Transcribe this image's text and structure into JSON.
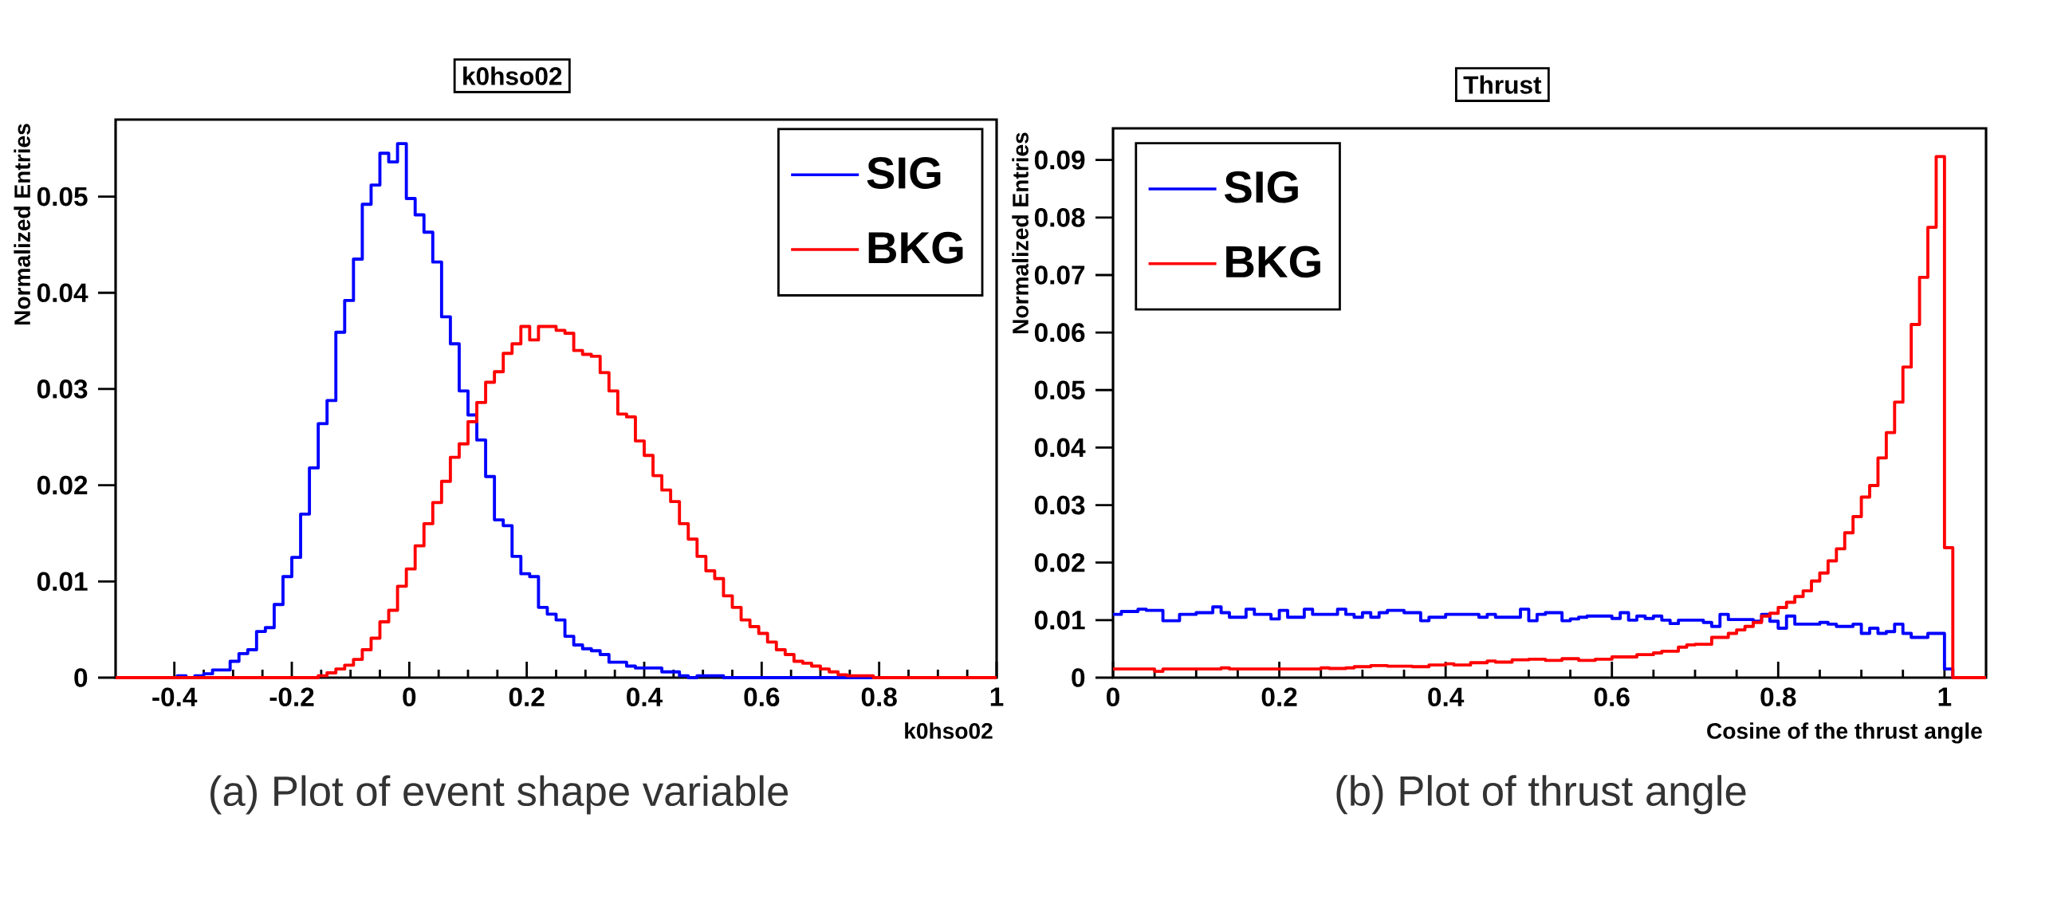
{
  "chart_data": [
    {
      "type": "histogram",
      "title": "k0hso02",
      "xlabel": "k0hso02",
      "ylabel": "Normalized Entries",
      "annotations": [
        "(a) Plot of event shape variable"
      ],
      "bins": [
        -0.5,
        -0.485,
        -0.47,
        -0.455,
        -0.44,
        -0.425,
        -0.41,
        -0.395,
        -0.38,
        -0.365,
        -0.35,
        -0.335,
        -0.32,
        -0.305,
        -0.29,
        -0.275,
        -0.26,
        -0.245,
        -0.23,
        -0.215,
        -0.2,
        -0.185,
        -0.17,
        -0.155,
        -0.14,
        -0.125,
        -0.11,
        -0.095,
        -0.08,
        -0.065,
        -0.05,
        -0.035,
        -0.02,
        -0.005,
        0.01,
        0.025,
        0.04,
        0.055,
        0.07,
        0.085,
        0.1,
        0.115,
        0.13,
        0.145,
        0.16,
        0.175,
        0.19,
        0.205,
        0.22,
        0.235,
        0.25,
        0.265,
        0.28,
        0.295,
        0.31,
        0.325,
        0.34,
        0.355,
        0.37,
        0.385,
        0.4,
        0.415,
        0.43,
        0.445,
        0.46,
        0.475,
        0.49,
        0.505,
        0.52,
        0.535,
        0.55,
        0.565,
        0.58,
        0.595,
        0.61,
        0.625,
        0.64,
        0.655,
        0.67,
        0.685,
        0.7,
        0.715,
        0.73,
        0.745,
        0.76,
        0.775,
        0.79,
        0.805,
        0.82,
        0.835,
        0.85,
        0.865,
        0.88,
        0.895,
        0.91,
        0.925,
        0.94,
        0.955,
        0.97,
        0.985,
        1
      ],
      "series": [
        {
          "name": "SIG",
          "color": "#0000ff",
          "values": [
            0,
            0,
            0,
            0,
            0,
            0,
            0,
            0.0002,
            0,
            0.0002,
            0.0004,
            0.0008,
            0.0008,
            0.0017,
            0.0025,
            0.0029,
            0.0048,
            0.0052,
            0.0076,
            0.0105,
            0.0125,
            0.017,
            0.0218,
            0.0264,
            0.0288,
            0.0359,
            0.0392,
            0.0435,
            0.0492,
            0.0512,
            0.0545,
            0.0536,
            0.0555,
            0.0498,
            0.0481,
            0.0463,
            0.0432,
            0.0375,
            0.0347,
            0.0298,
            0.0273,
            0.0247,
            0.0209,
            0.0164,
            0.0158,
            0.0126,
            0.0108,
            0.0105,
            0.0073,
            0.0066,
            0.006,
            0.0043,
            0.0034,
            0.003,
            0.0028,
            0.0024,
            0.0016,
            0.0016,
            0.0012,
            0.001,
            0.001,
            0.001,
            0.0006,
            0.0006,
            0.0002,
            0,
            0.0002,
            0.0002,
            0.0002,
            0,
            0,
            0,
            0,
            0,
            0,
            0,
            0,
            0,
            0,
            0,
            0,
            0,
            0,
            0,
            0,
            0,
            0,
            0,
            0,
            0,
            0,
            0,
            0,
            0,
            0,
            0,
            0,
            0,
            0,
            0
          ]
        },
        {
          "name": "BKG",
          "color": "#ff0000",
          "values": [
            0,
            0,
            0,
            0,
            0,
            0,
            0,
            0,
            0,
            0,
            0,
            0,
            0,
            0,
            0,
            0,
            0,
            0,
            0,
            0,
            0,
            0,
            0,
            0.0002,
            0.0005,
            0.0009,
            0.0013,
            0.0019,
            0.0029,
            0.0041,
            0.0058,
            0.007,
            0.0095,
            0.0113,
            0.0137,
            0.016,
            0.0182,
            0.0204,
            0.0229,
            0.0243,
            0.0266,
            0.0286,
            0.0307,
            0.0318,
            0.0337,
            0.0347,
            0.0365,
            0.0351,
            0.0365,
            0.0365,
            0.0361,
            0.0358,
            0.034,
            0.0336,
            0.0334,
            0.0317,
            0.0298,
            0.0274,
            0.0271,
            0.0246,
            0.0231,
            0.021,
            0.0195,
            0.0183,
            0.016,
            0.0144,
            0.0126,
            0.0111,
            0.0103,
            0.0085,
            0.0073,
            0.006,
            0.0053,
            0.0046,
            0.0037,
            0.0029,
            0.0024,
            0.0017,
            0.0015,
            0.0012,
            0.0009,
            0.0006,
            0.0003,
            0.0002,
            0.0002,
            0.0002,
            0,
            0,
            0,
            0,
            0,
            0,
            0,
            0,
            0,
            0,
            0,
            0,
            0,
            0
          ]
        }
      ],
      "xlim": [
        -0.5,
        1
      ],
      "ylim": [
        0,
        0.058
      ],
      "xticks": [
        -0.4,
        -0.2,
        0,
        0.2,
        0.4,
        0.6,
        0.8,
        1
      ],
      "yticks": [
        0,
        0.01,
        0.02,
        0.03,
        0.04,
        0.05
      ],
      "legend": "top right"
    },
    {
      "type": "histogram",
      "title": "Thrust",
      "xlabel": "Cosine of the thrust angle",
      "ylabel": "Normalized Entries",
      "annotations": [
        "(b) Plot of thrust angle"
      ],
      "bins": [
        0,
        0.01,
        0.02,
        0.03,
        0.04,
        0.05,
        0.06,
        0.07,
        0.08,
        0.09,
        0.1,
        0.11,
        0.12,
        0.13,
        0.14,
        0.15,
        0.16,
        0.17,
        0.18,
        0.19,
        0.2,
        0.21,
        0.22,
        0.23,
        0.24,
        0.25,
        0.26,
        0.27,
        0.28,
        0.29,
        0.3,
        0.31,
        0.32,
        0.33,
        0.34,
        0.35,
        0.36,
        0.37,
        0.38,
        0.39,
        0.4,
        0.41,
        0.42,
        0.43,
        0.44,
        0.45,
        0.46,
        0.47,
        0.48,
        0.49,
        0.5,
        0.51,
        0.52,
        0.53,
        0.54,
        0.55,
        0.56,
        0.57,
        0.58,
        0.59,
        0.6,
        0.61,
        0.62,
        0.63,
        0.64,
        0.65,
        0.66,
        0.67,
        0.68,
        0.69,
        0.7,
        0.71,
        0.72,
        0.73,
        0.74,
        0.75,
        0.76,
        0.77,
        0.78,
        0.79,
        0.8,
        0.81,
        0.82,
        0.83,
        0.84,
        0.85,
        0.86,
        0.87,
        0.88,
        0.89,
        0.9,
        0.91,
        0.92,
        0.93,
        0.94,
        0.95,
        0.96,
        0.97,
        0.98,
        0.99,
        1,
        1.01,
        1.02,
        1.03,
        1.04,
        1.05
      ],
      "series": [
        {
          "name": "SIG",
          "color": "#0000ff",
          "values": [
            0.011,
            0.0115,
            0.0115,
            0.0119,
            0.0117,
            0.0117,
            0.0099,
            0.0099,
            0.011,
            0.011,
            0.0113,
            0.0113,
            0.0123,
            0.0113,
            0.0105,
            0.0105,
            0.0119,
            0.011,
            0.011,
            0.0102,
            0.0117,
            0.0105,
            0.0105,
            0.0119,
            0.011,
            0.011,
            0.011,
            0.0119,
            0.011,
            0.0105,
            0.0113,
            0.0105,
            0.0113,
            0.0117,
            0.0117,
            0.0113,
            0.0113,
            0.0099,
            0.0105,
            0.0105,
            0.011,
            0.011,
            0.011,
            0.011,
            0.0105,
            0.011,
            0.0105,
            0.0105,
            0.0105,
            0.0119,
            0.0099,
            0.011,
            0.0113,
            0.0113,
            0.0099,
            0.0102,
            0.0105,
            0.0107,
            0.0107,
            0.0107,
            0.0103,
            0.0113,
            0.01,
            0.0107,
            0.0103,
            0.0107,
            0.01,
            0.0094,
            0.01,
            0.01,
            0.01,
            0.0096,
            0.0089,
            0.011,
            0.0101,
            0.0101,
            0.0101,
            0.0098,
            0.011,
            0.0098,
            0.0086,
            0.0107,
            0.0093,
            0.0093,
            0.0093,
            0.0096,
            0.0093,
            0.0089,
            0.0089,
            0.0093,
            0.0077,
            0.0086,
            0.0077,
            0.008,
            0.0093,
            0.0077,
            0.007,
            0.007,
            0.0077,
            0.0077,
            0.0015,
            0,
            0,
            0,
            0
          ]
        },
        {
          "name": "BKG",
          "color": "#ff0000",
          "values": [
            0.0015,
            0.0015,
            0.0015,
            0.0015,
            0.0015,
            0.0011,
            0.0015,
            0.0015,
            0.0015,
            0.0015,
            0.0015,
            0.0015,
            0.0015,
            0.0017,
            0.0015,
            0.0015,
            0.0015,
            0.0015,
            0.0015,
            0.0015,
            0.0015,
            0.0015,
            0.0015,
            0.0015,
            0.0015,
            0.0017,
            0.0016,
            0.0016,
            0.0017,
            0.0019,
            0.0019,
            0.0021,
            0.0021,
            0.002,
            0.002,
            0.002,
            0.0019,
            0.0019,
            0.0022,
            0.0022,
            0.0024,
            0.0022,
            0.0022,
            0.0026,
            0.0026,
            0.0029,
            0.0027,
            0.0027,
            0.0031,
            0.0031,
            0.0032,
            0.0032,
            0.003,
            0.003,
            0.0033,
            0.0033,
            0.003,
            0.003,
            0.0032,
            0.0032,
            0.0036,
            0.0036,
            0.0036,
            0.004,
            0.004,
            0.0043,
            0.0046,
            0.0046,
            0.0053,
            0.0057,
            0.0058,
            0.0058,
            0.007,
            0.007,
            0.0077,
            0.0083,
            0.0089,
            0.0096,
            0.0107,
            0.0112,
            0.0122,
            0.0131,
            0.0141,
            0.0151,
            0.0168,
            0.0182,
            0.0203,
            0.0224,
            0.0252,
            0.028,
            0.0314,
            0.0334,
            0.0382,
            0.0426,
            0.0479,
            0.054,
            0.0614,
            0.0696,
            0.0783,
            0.0906,
            0.0226,
            0,
            0,
            0,
            0
          ]
        }
      ],
      "xlim": [
        0,
        1.05
      ],
      "ylim": [
        0,
        0.0955
      ],
      "xticks": [
        0,
        0.2,
        0.4,
        0.6,
        0.8,
        1
      ],
      "yticks": [
        0,
        0.01,
        0.02,
        0.03,
        0.04,
        0.05,
        0.06,
        0.07,
        0.08,
        0.09
      ],
      "legend": "top left"
    }
  ]
}
